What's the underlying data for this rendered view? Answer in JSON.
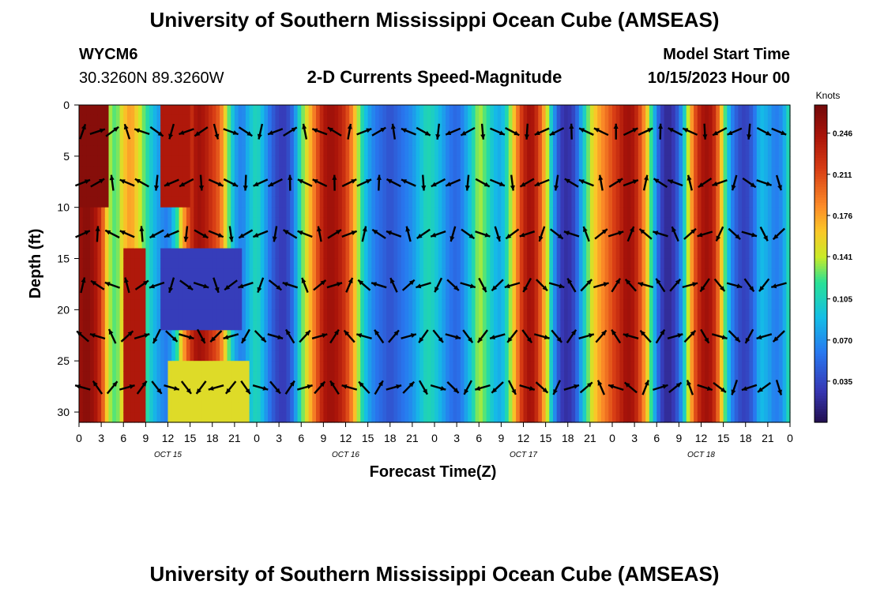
{
  "header": {
    "title": "University of Southern Mississippi Ocean Cube (AMSEAS)",
    "station": "WYCM6",
    "coordinates": "30.3260N  89.3260W",
    "subtitle": "2-D Currents Speed-Magnitude",
    "model_start_label": "Model Start Time",
    "model_start_value": "10/15/2023 Hour 00"
  },
  "footer": {
    "title": "University of Southern Mississippi Ocean Cube (AMSEAS)"
  },
  "chart_data": {
    "type": "heatmap",
    "title": "2-D Currents Speed-Magnitude",
    "xlabel": "Forecast Time(Z)",
    "ylabel": "Depth (ft)",
    "x_range_hours": [
      0,
      96
    ],
    "y_range_ft": [
      0,
      31
    ],
    "x_ticks": [
      {
        "hour": 0,
        "label": "0"
      },
      {
        "hour": 3,
        "label": "3"
      },
      {
        "hour": 6,
        "label": "6"
      },
      {
        "hour": 9,
        "label": "9"
      },
      {
        "hour": 12,
        "label": "12"
      },
      {
        "hour": 15,
        "label": "15"
      },
      {
        "hour": 18,
        "label": "18"
      },
      {
        "hour": 21,
        "label": "21"
      },
      {
        "hour": 24,
        "label": "0"
      },
      {
        "hour": 27,
        "label": "3"
      },
      {
        "hour": 30,
        "label": "6"
      },
      {
        "hour": 33,
        "label": "9"
      },
      {
        "hour": 36,
        "label": "12"
      },
      {
        "hour": 39,
        "label": "15"
      },
      {
        "hour": 42,
        "label": "18"
      },
      {
        "hour": 45,
        "label": "21"
      },
      {
        "hour": 48,
        "label": "0"
      },
      {
        "hour": 51,
        "label": "3"
      },
      {
        "hour": 54,
        "label": "6"
      },
      {
        "hour": 57,
        "label": "9"
      },
      {
        "hour": 60,
        "label": "12"
      },
      {
        "hour": 63,
        "label": "15"
      },
      {
        "hour": 66,
        "label": "18"
      },
      {
        "hour": 69,
        "label": "21"
      },
      {
        "hour": 72,
        "label": "0"
      },
      {
        "hour": 75,
        "label": "3"
      },
      {
        "hour": 78,
        "label": "6"
      },
      {
        "hour": 81,
        "label": "9"
      },
      {
        "hour": 84,
        "label": "12"
      },
      {
        "hour": 87,
        "label": "15"
      },
      {
        "hour": 90,
        "label": "18"
      },
      {
        "hour": 93,
        "label": "21"
      },
      {
        "hour": 96,
        "label": "0"
      }
    ],
    "date_labels": [
      {
        "hour": 12,
        "label": "OCT 15"
      },
      {
        "hour": 36,
        "label": "OCT 16"
      },
      {
        "hour": 60,
        "label": "OCT 17"
      },
      {
        "hour": 84,
        "label": "OCT 18"
      }
    ],
    "y_ticks": [
      0,
      5,
      10,
      15,
      20,
      25,
      30
    ],
    "colorbar": {
      "unit": "Knots",
      "range": [
        0.0,
        0.27
      ],
      "tick_values": [
        0.246,
        0.211,
        0.176,
        0.141,
        0.105,
        0.07,
        0.035
      ],
      "tick_labels": [
        "0.246",
        "0.211",
        "0.176",
        "0.141",
        "0.105",
        "0.070",
        "0.035"
      ]
    },
    "speed_profile_knots": [
      [
        0,
        0.25
      ],
      [
        1,
        0.26
      ],
      [
        2,
        0.25
      ],
      [
        3,
        0.22
      ],
      [
        4,
        0.14
      ],
      [
        5,
        0.12
      ],
      [
        6,
        0.16
      ],
      [
        7,
        0.18
      ],
      [
        8,
        0.15
      ],
      [
        9,
        0.12
      ],
      [
        10,
        0.09
      ],
      [
        11,
        0.07
      ],
      [
        12,
        0.06
      ],
      [
        13,
        0.1
      ],
      [
        14,
        0.17
      ],
      [
        15,
        0.22
      ],
      [
        16,
        0.25
      ],
      [
        17,
        0.24
      ],
      [
        18,
        0.22
      ],
      [
        19,
        0.2
      ],
      [
        20,
        0.14
      ],
      [
        21,
        0.08
      ],
      [
        22,
        0.06
      ],
      [
        23,
        0.09
      ],
      [
        24,
        0.11
      ],
      [
        25,
        0.08
      ],
      [
        26,
        0.05
      ],
      [
        27,
        0.03
      ],
      [
        28,
        0.03
      ],
      [
        29,
        0.06
      ],
      [
        30,
        0.12
      ],
      [
        31,
        0.16
      ],
      [
        32,
        0.2
      ],
      [
        33,
        0.24
      ],
      [
        34,
        0.25
      ],
      [
        35,
        0.24
      ],
      [
        36,
        0.22
      ],
      [
        37,
        0.18
      ],
      [
        38,
        0.12
      ],
      [
        39,
        0.08
      ],
      [
        40,
        0.06
      ],
      [
        41,
        0.05
      ],
      [
        42,
        0.04
      ],
      [
        43,
        0.05
      ],
      [
        44,
        0.06
      ],
      [
        45,
        0.07
      ],
      [
        46,
        0.09
      ],
      [
        47,
        0.11
      ],
      [
        48,
        0.1
      ],
      [
        49,
        0.08
      ],
      [
        50,
        0.06
      ],
      [
        51,
        0.05
      ],
      [
        52,
        0.07
      ],
      [
        53,
        0.1
      ],
      [
        54,
        0.14
      ],
      [
        55,
        0.12
      ],
      [
        56,
        0.09
      ],
      [
        57,
        0.08
      ],
      [
        58,
        0.12
      ],
      [
        59,
        0.18
      ],
      [
        60,
        0.23
      ],
      [
        61,
        0.25
      ],
      [
        62,
        0.22
      ],
      [
        63,
        0.16
      ],
      [
        64,
        0.08
      ],
      [
        65,
        0.03
      ],
      [
        66,
        0.02
      ],
      [
        67,
        0.04
      ],
      [
        68,
        0.09
      ],
      [
        69,
        0.14
      ],
      [
        70,
        0.17
      ],
      [
        71,
        0.19
      ],
      [
        72,
        0.21
      ],
      [
        73,
        0.23
      ],
      [
        74,
        0.25
      ],
      [
        75,
        0.24
      ],
      [
        76,
        0.2
      ],
      [
        77,
        0.14
      ],
      [
        78,
        0.06
      ],
      [
        79,
        0.02
      ],
      [
        80,
        0.02
      ],
      [
        81,
        0.05
      ],
      [
        82,
        0.12
      ],
      [
        83,
        0.2
      ],
      [
        84,
        0.24
      ],
      [
        85,
        0.25
      ],
      [
        86,
        0.22
      ],
      [
        87,
        0.14
      ],
      [
        88,
        0.07
      ],
      [
        89,
        0.04
      ],
      [
        90,
        0.03
      ],
      [
        91,
        0.05
      ],
      [
        92,
        0.09
      ],
      [
        93,
        0.08
      ],
      [
        94,
        0.06
      ],
      [
        95,
        0.07
      ],
      [
        96,
        0.12
      ]
    ],
    "anomalies": [
      {
        "hours": [
          0,
          4
        ],
        "depth_ft": [
          0,
          10
        ],
        "speed": 0.26
      },
      {
        "hours": [
          6,
          9
        ],
        "depth_ft": [
          14,
          31
        ],
        "speed": 0.24
      },
      {
        "hours": [
          11,
          15
        ],
        "depth_ft": [
          0,
          10
        ],
        "speed": 0.24
      },
      {
        "hours": [
          11,
          22
        ],
        "depth_ft": [
          14,
          22
        ],
        "speed": 0.03
      },
      {
        "hours": [
          12,
          23
        ],
        "depth_ft": [
          25,
          31
        ],
        "speed": 0.15
      }
    ]
  }
}
